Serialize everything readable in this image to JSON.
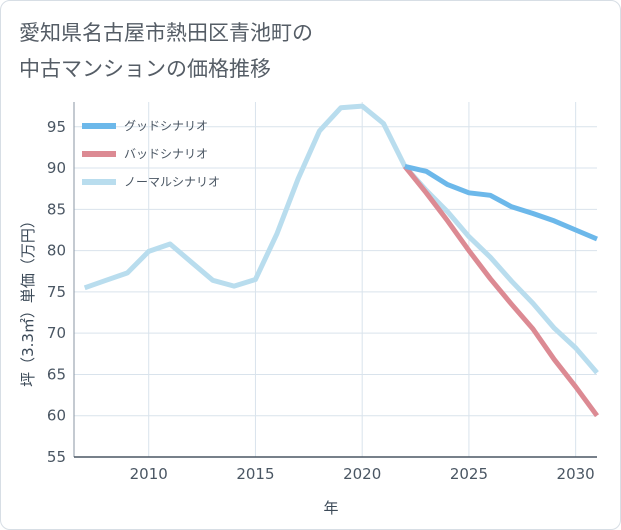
{
  "header": {
    "title_line1": "愛知県名古屋市熱田区青池町の",
    "title_line2": "中古マンションの価格推移"
  },
  "chart_data": {
    "type": "line",
    "xlabel": "年",
    "ylabel": "坪（3.3㎡）単価（万円）",
    "xlim": [
      2006.5,
      2031
    ],
    "ylim": [
      55,
      98
    ],
    "x_ticks": [
      2010,
      2015,
      2020,
      2025,
      2030
    ],
    "y_ticks": [
      55,
      60,
      65,
      70,
      75,
      80,
      85,
      90,
      95
    ],
    "grid": true,
    "legend_position": "top-left",
    "series": [
      {
        "name": "グッドシナリオ",
        "color": "#6cb8ea",
        "x": [
          2022,
          2023,
          2024,
          2025,
          2026,
          2027,
          2028,
          2029,
          2030,
          2031
        ],
        "values": [
          90.2,
          89.6,
          88.0,
          87.0,
          86.7,
          85.3,
          84.5,
          83.6,
          82.5,
          81.4
        ]
      },
      {
        "name": "バッドシナリオ",
        "color": "#dc8a93",
        "x": [
          2022,
          2023,
          2024,
          2025,
          2026,
          2027,
          2028,
          2029,
          2030,
          2031
        ],
        "values": [
          90.2,
          87.0,
          83.6,
          80.0,
          76.6,
          73.5,
          70.5,
          66.8,
          63.5,
          60.0
        ]
      },
      {
        "name": "ノーマルシナリオ",
        "color": "#b9ddee",
        "x": [
          2007,
          2008,
          2009,
          2010,
          2011,
          2012,
          2013,
          2014,
          2015,
          2016,
          2017,
          2018,
          2019,
          2020,
          2021,
          2022,
          2023,
          2024,
          2025,
          2026,
          2027,
          2028,
          2029,
          2030,
          2031
        ],
        "values": [
          75.5,
          76.4,
          77.3,
          79.9,
          80.8,
          78.6,
          76.4,
          75.7,
          76.5,
          82.0,
          88.7,
          94.5,
          97.3,
          97.5,
          95.4,
          90.2,
          87.3,
          84.7,
          81.7,
          79.2,
          76.3,
          73.6,
          70.6,
          68.2,
          65.2
        ]
      }
    ]
  }
}
